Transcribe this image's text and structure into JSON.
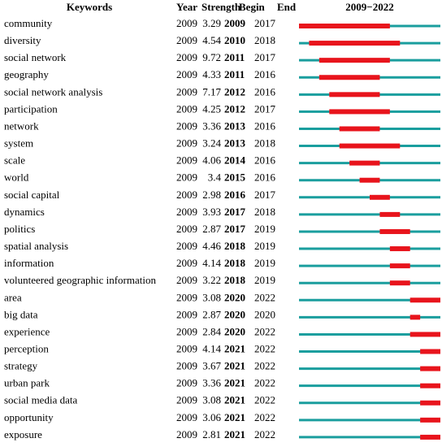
{
  "table": {
    "header": [
      "Keywords",
      "Year",
      "Strength",
      "Begin",
      "End",
      "2009−2022"
    ],
    "rows": [
      [
        "community",
        2009,
        3.29,
        2009,
        2017
      ],
      [
        "diversity",
        2009,
        4.54,
        2010,
        2018
      ],
      [
        "social network",
        2009,
        9.72,
        2011,
        2017
      ],
      [
        "geography",
        2009,
        4.33,
        2011,
        2016
      ],
      [
        "social network analysis",
        2009,
        7.17,
        2012,
        2016
      ],
      [
        "participation",
        2009,
        4.25,
        2012,
        2017
      ],
      [
        "network",
        2009,
        3.36,
        2013,
        2016
      ],
      [
        "system",
        2009,
        3.24,
        2013,
        2018
      ],
      [
        "scale",
        2009,
        4.06,
        2014,
        2016
      ],
      [
        "world",
        2009,
        3.4,
        2015,
        2016
      ],
      [
        "social capital",
        2009,
        2.98,
        2016,
        2017
      ],
      [
        "dynamics",
        2009,
        3.93,
        2017,
        2018
      ],
      [
        "politics",
        2009,
        2.87,
        2017,
        2019
      ],
      [
        "spatial analysis",
        2009,
        4.46,
        2018,
        2019
      ],
      [
        "information",
        2009,
        4.14,
        2018,
        2019
      ],
      [
        "volunteered geographic information",
        2009,
        3.22,
        2018,
        2019
      ],
      [
        "area",
        2009,
        3.08,
        2020,
        2022
      ],
      [
        "big data",
        2009,
        2.87,
        2020,
        2020
      ],
      [
        "experience",
        2009,
        2.84,
        2020,
        2022
      ],
      [
        "perception",
        2009,
        4.14,
        2021,
        2022
      ],
      [
        "strategy",
        2009,
        3.67,
        2021,
        2022
      ],
      [
        "urban park",
        2009,
        3.36,
        2021,
        2022
      ],
      [
        "social media data",
        2009,
        3.08,
        2021,
        2022
      ],
      [
        "opportunity",
        2009,
        3.06,
        2021,
        2022
      ],
      [
        "exposure",
        2009,
        2.81,
        2021,
        2022
      ]
    ]
  }
}
